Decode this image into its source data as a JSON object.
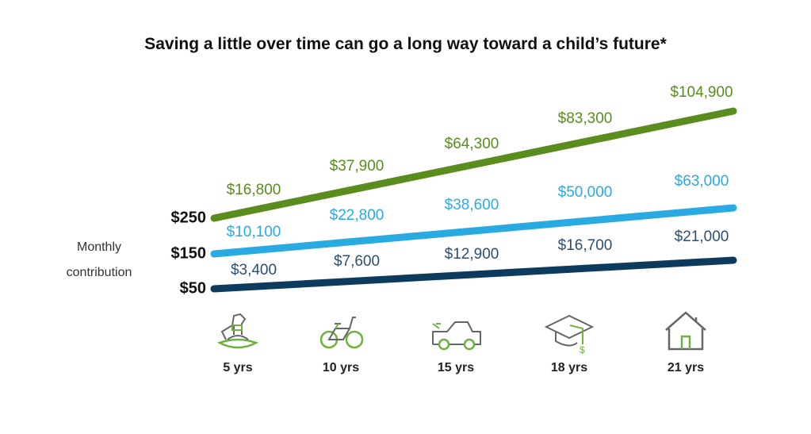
{
  "title": "Saving a little over time can go a long way toward a child’s future*",
  "y_axis_label": [
    "Monthly",
    "contribution"
  ],
  "chart_data": {
    "type": "line",
    "title": "Saving a little over time can go a long way toward a child’s future*",
    "ylabel": "Monthly contribution",
    "categories": [
      "5 yrs",
      "10 yrs",
      "15 yrs",
      "18 yrs",
      "21 yrs"
    ],
    "series": [
      {
        "name": "$250",
        "color": "#5b8c1e",
        "values": [
          16800,
          37900,
          64300,
          83300,
          104900
        ],
        "labels": [
          "$16,800",
          "$37,900",
          "$64,300",
          "$83,300",
          "$104,900"
        ]
      },
      {
        "name": "$150",
        "color": "#29abe2",
        "values": [
          10100,
          22800,
          38600,
          50000,
          63000
        ],
        "labels": [
          "$10,100",
          "$22,800",
          "$38,600",
          "$50,000",
          "$63,000"
        ]
      },
      {
        "name": "$50",
        "color": "#0d3b5e",
        "values": [
          3400,
          7600,
          12900,
          16700,
          21000
        ],
        "labels": [
          "$3,400",
          "$7,600",
          "$12,900",
          "$16,700",
          "$21,000"
        ]
      }
    ],
    "icons": [
      "rocking-horse-icon",
      "bicycle-icon",
      "car-icon",
      "graduation-cap-icon",
      "house-icon"
    ],
    "grid": false
  }
}
